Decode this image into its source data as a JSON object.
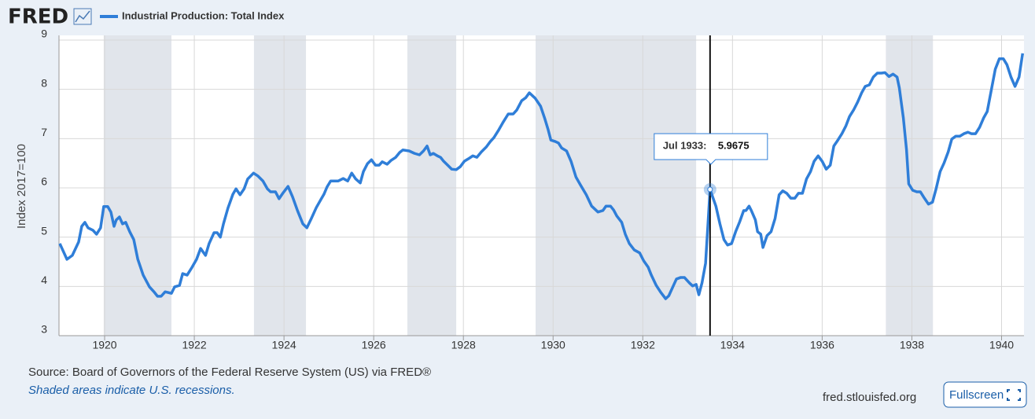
{
  "header": {
    "logo": "FRED"
  },
  "footer": {
    "source": "Source: Board of Governors of the Federal Reserve System (US) via FRED®",
    "note": "Shaded areas indicate U.S. recessions.",
    "site": "fred.stlouisfed.org",
    "button": "Fullscreen"
  },
  "chart_data": {
    "type": "line",
    "y_label": "Index 2017=100",
    "legend": "top-left",
    "grid": true,
    "xlim": [
      1919,
      1940.5
    ],
    "ylim": [
      3,
      9
    ],
    "xticks": [
      1920,
      1922,
      1924,
      1926,
      1928,
      1930,
      1932,
      1934,
      1936,
      1938,
      1940
    ],
    "yticks": [
      3,
      4,
      5,
      6,
      7,
      8,
      9
    ],
    "recessions": [
      [
        1919.98,
        1921.49
      ],
      [
        1923.33,
        1924.49
      ],
      [
        1926.75,
        1927.84
      ],
      [
        1929.61,
        1933.19
      ],
      [
        1937.42,
        1938.47
      ]
    ],
    "recession_color": "#e1e5eb",
    "tooltip": {
      "label": "Jul 1933:",
      "x": 1933.5
    },
    "x": [
      1919.0,
      1919.16,
      1919.28,
      1919.42,
      1919.49,
      1919.56,
      1919.63,
      1919.74,
      1919.82,
      1919.91,
      1919.98,
      1920.07,
      1920.14,
      1920.21,
      1920.26,
      1920.33,
      1920.4,
      1920.47,
      1920.56,
      1920.65,
      1920.74,
      1920.86,
      1921.0,
      1921.11,
      1921.18,
      1921.26,
      1921.35,
      1921.49,
      1921.56,
      1921.67,
      1921.74,
      1921.84,
      1921.95,
      1922.05,
      1922.14,
      1922.25,
      1922.33,
      1922.44,
      1922.51,
      1922.58,
      1922.65,
      1922.75,
      1922.86,
      1922.93,
      1923.02,
      1923.11,
      1923.19,
      1923.32,
      1923.42,
      1923.53,
      1923.63,
      1923.7,
      1923.81,
      1923.89,
      1923.98,
      1924.09,
      1924.19,
      1924.3,
      1924.42,
      1924.51,
      1924.61,
      1924.72,
      1924.82,
      1924.89,
      1924.96,
      1925.04,
      1925.21,
      1925.32,
      1925.42,
      1925.51,
      1925.6,
      1925.7,
      1925.77,
      1925.86,
      1925.95,
      1926.04,
      1926.12,
      1926.19,
      1926.3,
      1926.39,
      1926.49,
      1926.58,
      1926.65,
      1926.79,
      1926.91,
      1927.02,
      1927.11,
      1927.19,
      1927.26,
      1927.33,
      1927.42,
      1927.49,
      1927.56,
      1927.65,
      1927.74,
      1927.84,
      1927.93,
      1928.02,
      1928.11,
      1928.21,
      1928.3,
      1928.4,
      1928.51,
      1928.6,
      1928.68,
      1928.79,
      1928.89,
      1929.0,
      1929.11,
      1929.19,
      1929.3,
      1929.39,
      1929.47,
      1929.6,
      1929.72,
      1929.81,
      1929.89,
      1929.95,
      1930.05,
      1930.12,
      1930.19,
      1930.3,
      1930.4,
      1930.51,
      1930.61,
      1930.74,
      1930.86,
      1931.0,
      1931.11,
      1931.18,
      1931.28,
      1931.35,
      1931.42,
      1931.53,
      1931.61,
      1931.7,
      1931.81,
      1931.93,
      1932.02,
      1932.12,
      1932.19,
      1932.3,
      1932.4,
      1932.51,
      1932.58,
      1932.67,
      1932.75,
      1932.84,
      1932.93,
      1933.04,
      1933.11,
      1933.19,
      1933.25,
      1933.32,
      1933.4,
      1933.5,
      1933.63,
      1933.72,
      1933.81,
      1933.89,
      1933.98,
      1934.07,
      1934.16,
      1934.25,
      1934.3,
      1934.37,
      1934.42,
      1934.51,
      1934.56,
      1934.63,
      1934.68,
      1934.77,
      1934.86,
      1934.95,
      1935.04,
      1935.12,
      1935.21,
      1935.3,
      1935.39,
      1935.47,
      1935.56,
      1935.65,
      1935.74,
      1935.82,
      1935.91,
      1936.0,
      1936.09,
      1936.18,
      1936.26,
      1936.35,
      1936.44,
      1936.53,
      1936.61,
      1936.7,
      1936.79,
      1936.88,
      1936.96,
      1937.05,
      1937.14,
      1937.23,
      1937.32,
      1937.4,
      1937.49,
      1937.58,
      1937.67,
      1937.72,
      1937.81,
      1937.88,
      1937.93,
      1938.02,
      1938.11,
      1938.19,
      1938.28,
      1938.37,
      1938.46,
      1938.54,
      1938.63,
      1938.72,
      1938.81,
      1938.89,
      1938.98,
      1939.07,
      1939.16,
      1939.25,
      1939.33,
      1939.42,
      1939.51,
      1939.6,
      1939.68,
      1939.77,
      1939.86,
      1939.95,
      1940.04,
      1940.12,
      1940.21,
      1940.3,
      1940.39,
      1940.47
    ],
    "series": [
      {
        "name": "Industrial Production: Total Index",
        "color": "#2f7ed8",
        "values": [
          4.87,
          4.55,
          4.63,
          4.9,
          5.22,
          5.3,
          5.19,
          5.14,
          5.06,
          5.19,
          5.62,
          5.62,
          5.51,
          5.22,
          5.35,
          5.41,
          5.27,
          5.3,
          5.11,
          4.95,
          4.55,
          4.23,
          3.99,
          3.88,
          3.8,
          3.8,
          3.89,
          3.86,
          3.99,
          4.02,
          4.26,
          4.23,
          4.39,
          4.55,
          4.77,
          4.63,
          4.87,
          5.09,
          5.09,
          5.0,
          5.27,
          5.59,
          5.87,
          5.98,
          5.86,
          5.98,
          6.18,
          6.3,
          6.24,
          6.14,
          5.98,
          5.92,
          5.92,
          5.78,
          5.9,
          6.03,
          5.82,
          5.54,
          5.27,
          5.19,
          5.38,
          5.6,
          5.76,
          5.87,
          6.02,
          6.14,
          6.14,
          6.19,
          6.14,
          6.3,
          6.18,
          6.1,
          6.33,
          6.49,
          6.57,
          6.46,
          6.46,
          6.53,
          6.48,
          6.56,
          6.62,
          6.72,
          6.77,
          6.75,
          6.7,
          6.67,
          6.75,
          6.85,
          6.67,
          6.7,
          6.65,
          6.62,
          6.54,
          6.46,
          6.38,
          6.37,
          6.43,
          6.54,
          6.59,
          6.65,
          6.62,
          6.73,
          6.83,
          6.94,
          7.02,
          7.18,
          7.34,
          7.5,
          7.5,
          7.58,
          7.77,
          7.83,
          7.93,
          7.82,
          7.66,
          7.42,
          7.18,
          6.97,
          6.94,
          6.91,
          6.81,
          6.75,
          6.54,
          6.22,
          6.06,
          5.86,
          5.63,
          5.51,
          5.54,
          5.63,
          5.63,
          5.55,
          5.43,
          5.3,
          5.06,
          4.87,
          4.74,
          4.68,
          4.52,
          4.39,
          4.23,
          4.02,
          3.88,
          3.75,
          3.81,
          3.99,
          4.15,
          4.18,
          4.18,
          4.07,
          4.01,
          4.04,
          3.83,
          4.07,
          4.47,
          5.9675,
          5.63,
          5.27,
          4.95,
          4.84,
          4.87,
          5.11,
          5.31,
          5.54,
          5.54,
          5.63,
          5.54,
          5.35,
          5.11,
          5.06,
          4.79,
          5.03,
          5.11,
          5.38,
          5.86,
          5.94,
          5.89,
          5.79,
          5.79,
          5.89,
          5.89,
          6.18,
          6.33,
          6.54,
          6.65,
          6.54,
          6.38,
          6.46,
          6.85,
          6.97,
          7.1,
          7.26,
          7.45,
          7.58,
          7.74,
          7.93,
          8.06,
          8.09,
          8.25,
          8.33,
          8.33,
          8.34,
          8.26,
          8.31,
          8.25,
          8.03,
          7.42,
          6.78,
          6.08,
          5.95,
          5.92,
          5.92,
          5.79,
          5.67,
          5.71,
          5.98,
          6.33,
          6.51,
          6.73,
          6.99,
          7.05,
          7.05,
          7.1,
          7.13,
          7.1,
          7.1,
          7.23,
          7.42,
          7.55,
          7.98,
          8.41,
          8.62,
          8.62,
          8.5,
          8.25,
          8.06,
          8.25,
          8.73
        ]
      }
    ]
  }
}
